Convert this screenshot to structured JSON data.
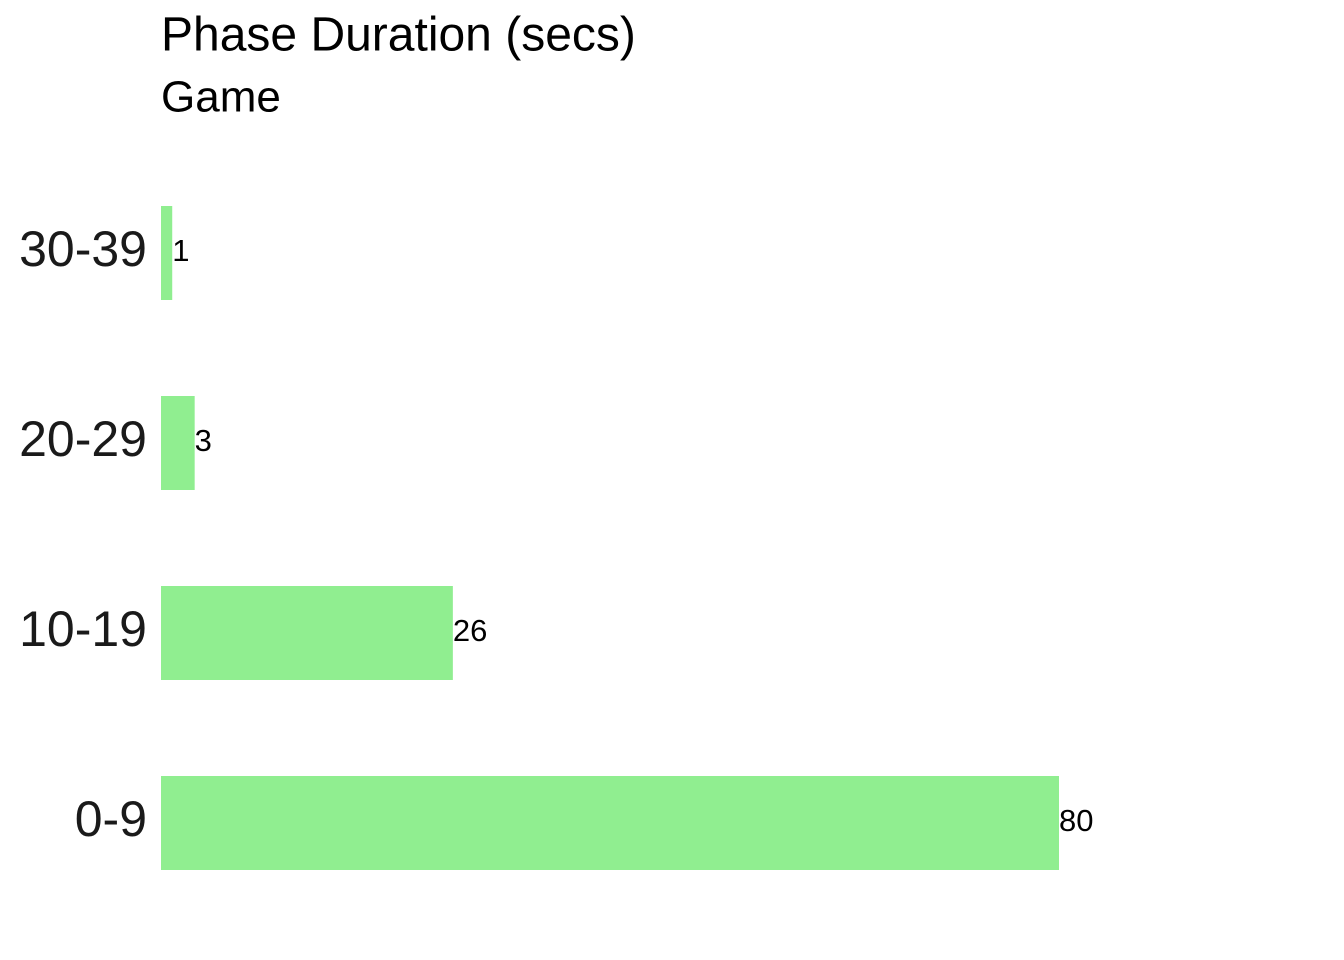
{
  "chart_data": {
    "type": "bar",
    "orientation": "horizontal",
    "title": "Phase Duration (secs)",
    "subtitle": "Game",
    "categories": [
      "0-9",
      "10-19",
      "20-29",
      "30-39"
    ],
    "values": [
      80,
      26,
      3,
      1
    ],
    "color": "#90ee90"
  }
}
